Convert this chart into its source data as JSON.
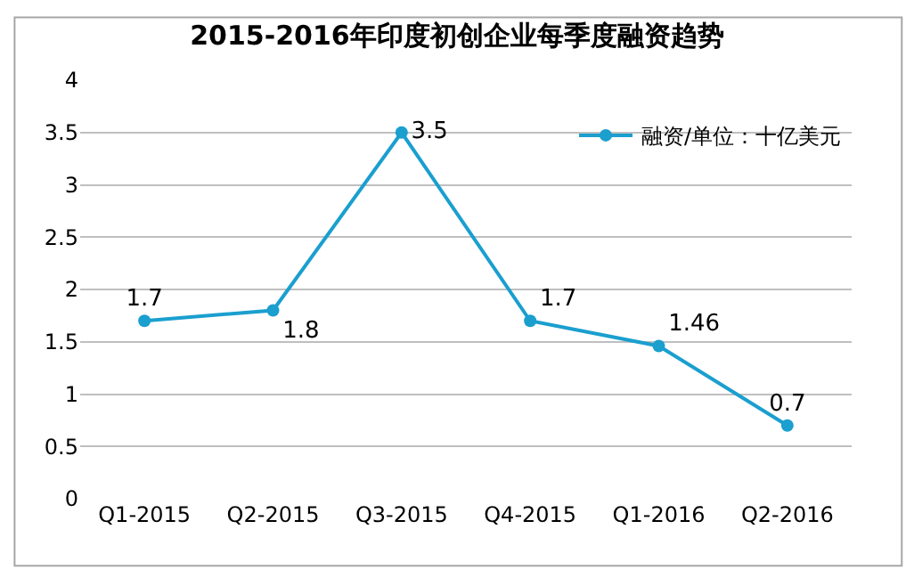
{
  "chart_data": {
    "type": "line",
    "title": "2015-2016年印度初创企业每季度融资趋势",
    "categories": [
      "Q1-2015",
      "Q2-2015",
      "Q3-2015",
      "Q4-2015",
      "Q1-2016",
      "Q2-2016"
    ],
    "series": [
      {
        "name": "融资/单位：十亿美元",
        "color": "#1a9fcf",
        "values": [
          1.7,
          1.8,
          3.5,
          1.7,
          1.46,
          0.7
        ]
      }
    ],
    "ylim": [
      0,
      4
    ],
    "yticks": [
      0,
      0.5,
      1,
      1.5,
      2,
      2.5,
      3,
      3.5,
      4
    ],
    "grid": "y",
    "legend": "top right",
    "marker": "circle",
    "line_style": "solid",
    "data_labels": true
  }
}
